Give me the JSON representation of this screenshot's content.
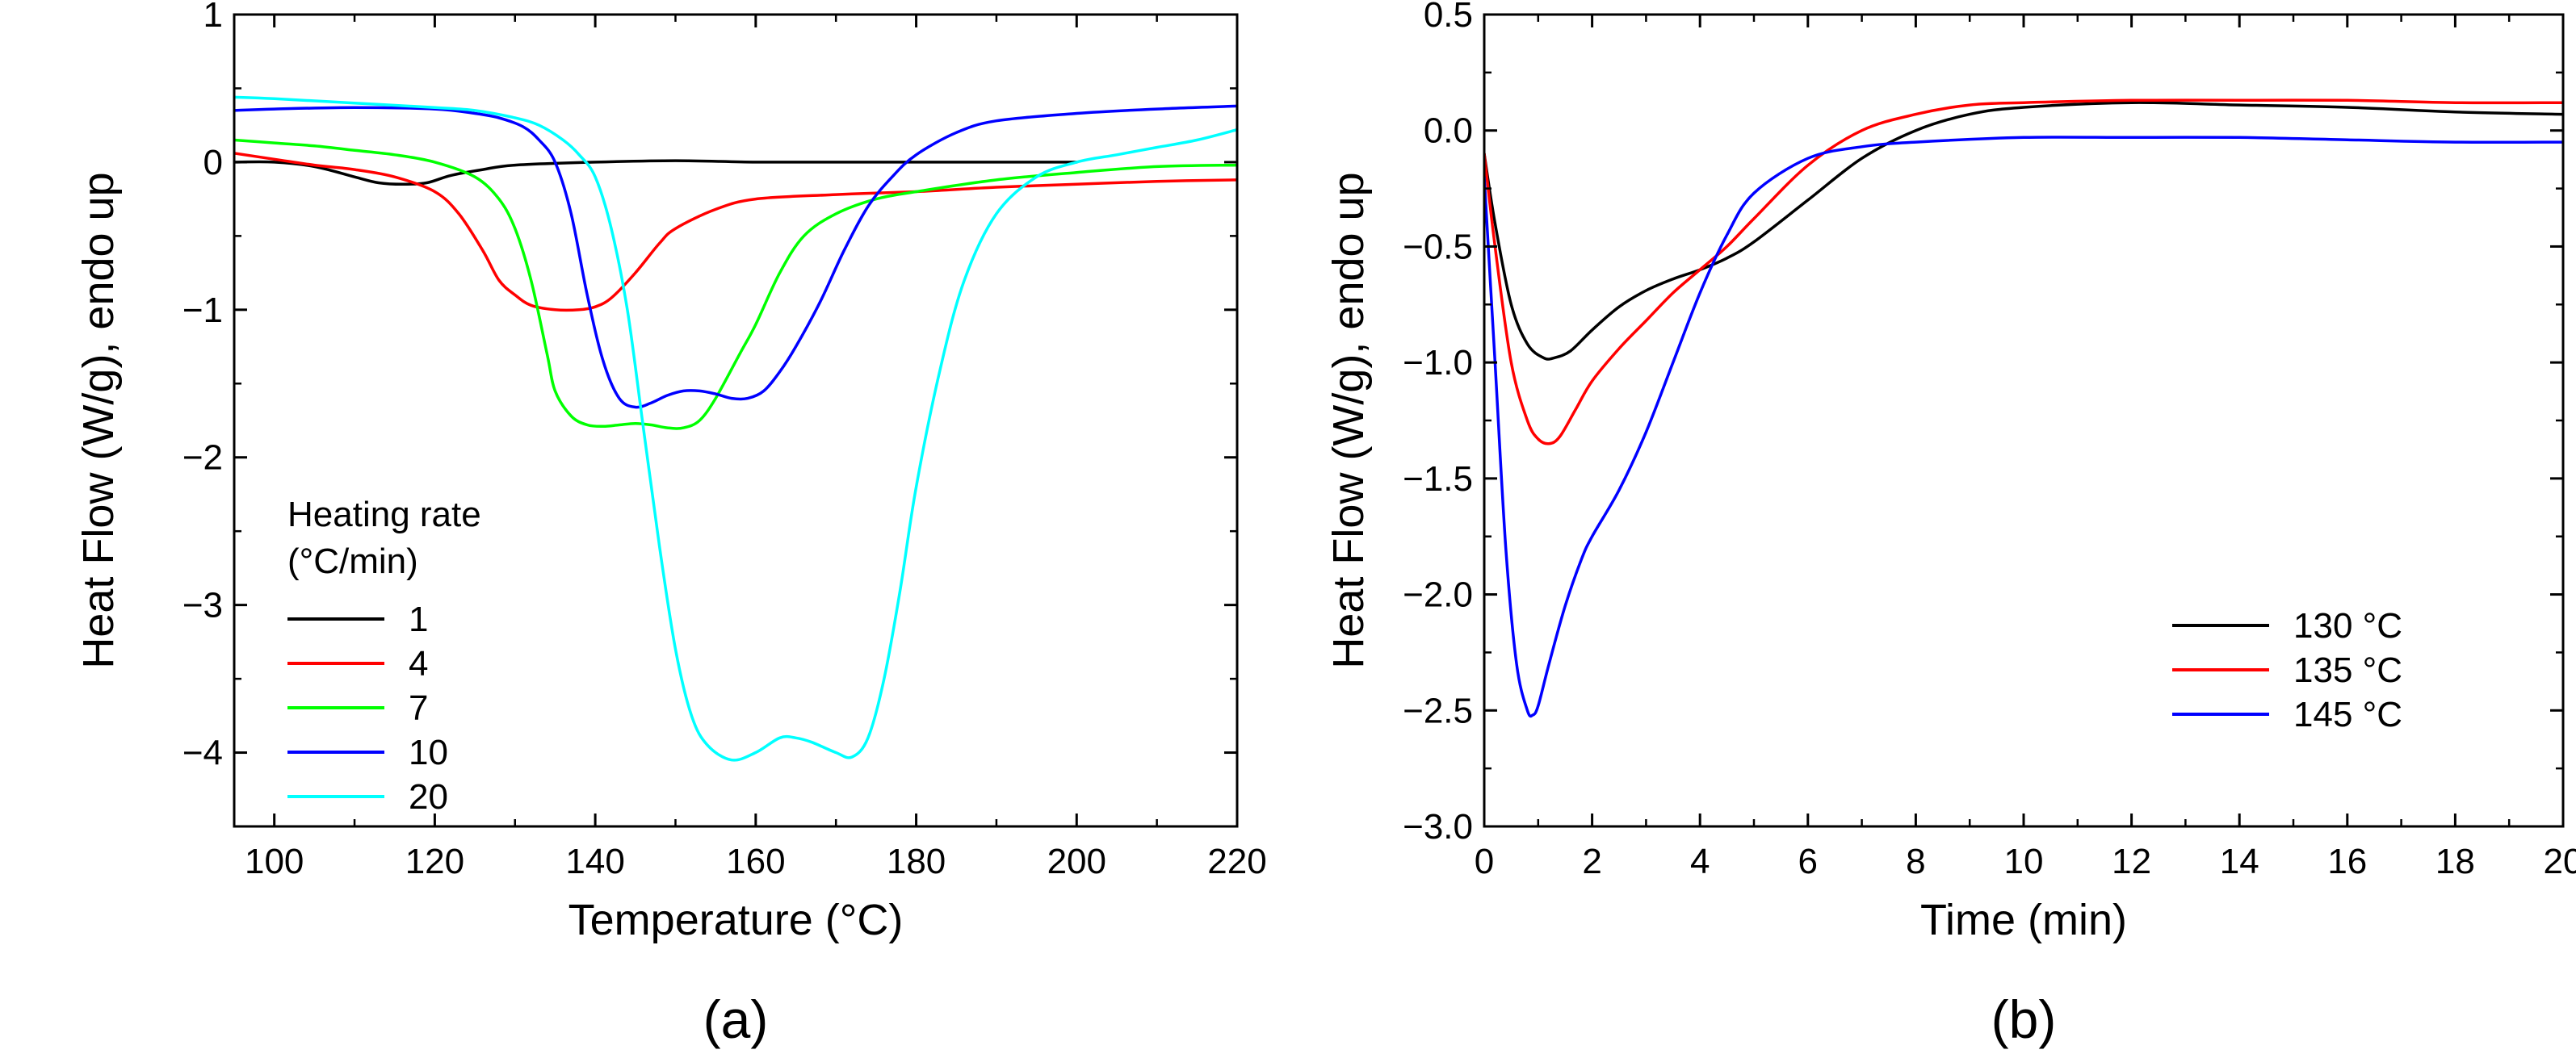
{
  "chart_data": [
    {
      "panel_label": "(a)",
      "type": "line",
      "xlabel": "Temperature (°C)",
      "ylabel": "Heat Flow (W/g), endo up",
      "xlim": [
        95,
        220
      ],
      "ylim": [
        -4.5,
        1
      ],
      "xticks": [
        100,
        120,
        140,
        160,
        180,
        200,
        220
      ],
      "xtick_labels": [
        "100",
        "120",
        "140",
        "160",
        "180",
        "200",
        "220"
      ],
      "yticks": [
        1,
        0,
        -1,
        -2,
        -3,
        -4
      ],
      "ytick_labels": [
        "1",
        "0",
        "−1",
        "−2",
        "−3",
        "−4"
      ],
      "grid": false,
      "legend_title_lines": [
        "Heating rate",
        "(°C/min)"
      ],
      "legend_position": "lower-left",
      "series": [
        {
          "name": "1",
          "color": "#000000",
          "x": [
            95,
            100,
            105,
            110,
            113,
            116,
            119,
            122,
            126,
            130,
            140,
            150,
            160,
            170,
            180,
            190,
            200
          ],
          "y": [
            0.0,
            0.0,
            -0.03,
            -0.1,
            -0.14,
            -0.15,
            -0.14,
            -0.09,
            -0.05,
            -0.02,
            0.0,
            0.01,
            0.0,
            0.0,
            0.0,
            0.0,
            0.0
          ]
        },
        {
          "name": "4",
          "color": "#ff0000",
          "x": [
            95,
            100,
            105,
            110,
            115,
            120,
            123,
            126,
            128,
            130,
            132,
            135,
            138,
            140,
            142,
            145,
            148,
            150,
            155,
            160,
            170,
            180,
            190,
            200,
            210,
            220
          ],
          "y": [
            0.06,
            0.02,
            -0.02,
            -0.05,
            -0.1,
            -0.2,
            -0.35,
            -0.6,
            -0.8,
            -0.9,
            -0.97,
            -1.0,
            -1.0,
            -0.98,
            -0.92,
            -0.75,
            -0.55,
            -0.45,
            -0.32,
            -0.25,
            -0.22,
            -0.2,
            -0.17,
            -0.15,
            -0.13,
            -0.12
          ]
        },
        {
          "name": "7",
          "color": "#00ff00",
          "x": [
            95,
            100,
            105,
            110,
            115,
            120,
            125,
            128,
            130,
            132,
            134,
            135,
            137,
            139,
            141,
            143,
            145,
            147,
            149,
            151,
            153,
            155,
            158,
            160,
            163,
            166,
            170,
            175,
            180,
            190,
            200,
            210,
            220
          ],
          "y": [
            0.15,
            0.13,
            0.11,
            0.08,
            0.05,
            0.0,
            -0.1,
            -0.25,
            -0.45,
            -0.8,
            -1.3,
            -1.55,
            -1.72,
            -1.78,
            -1.79,
            -1.78,
            -1.77,
            -1.78,
            -1.8,
            -1.8,
            -1.75,
            -1.6,
            -1.3,
            -1.1,
            -0.75,
            -0.5,
            -0.35,
            -0.25,
            -0.2,
            -0.12,
            -0.07,
            -0.03,
            -0.02
          ]
        },
        {
          "name": "10",
          "color": "#0000ff",
          "x": [
            95,
            100,
            110,
            120,
            125,
            128,
            131,
            133,
            135,
            137,
            139,
            141,
            143,
            145,
            147,
            149,
            151,
            153,
            155,
            157,
            159,
            161,
            163,
            165,
            168,
            171,
            174,
            177,
            180,
            185,
            190,
            200,
            210,
            220
          ],
          "y": [
            0.35,
            0.36,
            0.37,
            0.36,
            0.33,
            0.3,
            0.24,
            0.15,
            0.0,
            -0.35,
            -0.9,
            -1.35,
            -1.6,
            -1.66,
            -1.63,
            -1.58,
            -1.55,
            -1.55,
            -1.57,
            -1.6,
            -1.6,
            -1.55,
            -1.42,
            -1.25,
            -0.95,
            -0.6,
            -0.3,
            -0.1,
            0.05,
            0.2,
            0.28,
            0.33,
            0.36,
            0.38
          ]
        },
        {
          "name": "20",
          "color": "#00ffff",
          "x": [
            95,
            100,
            110,
            120,
            125,
            130,
            133,
            136,
            138,
            140,
            142,
            144,
            146,
            148,
            150,
            152,
            154,
            157,
            160,
            163,
            165,
            167,
            170,
            172,
            174,
            176,
            178,
            180,
            183,
            186,
            190,
            195,
            200,
            205,
            210,
            215,
            220
          ],
          "y": [
            0.44,
            0.43,
            0.4,
            0.37,
            0.35,
            0.3,
            0.25,
            0.15,
            0.05,
            -0.1,
            -0.45,
            -1.0,
            -1.8,
            -2.6,
            -3.3,
            -3.75,
            -3.95,
            -4.05,
            -4.0,
            -3.9,
            -3.9,
            -3.93,
            -4.0,
            -4.03,
            -3.9,
            -3.5,
            -2.9,
            -2.2,
            -1.4,
            -0.8,
            -0.35,
            -0.1,
            0.0,
            0.05,
            0.1,
            0.15,
            0.22
          ]
        }
      ]
    },
    {
      "panel_label": "(b)",
      "type": "line",
      "xlabel": "Time (min)",
      "ylabel": "Heat Flow (W/g), endo up",
      "xlim": [
        0,
        20
      ],
      "ylim": [
        -3.0,
        0.5
      ],
      "xticks": [
        0,
        2,
        4,
        6,
        8,
        10,
        12,
        14,
        16,
        18,
        20
      ],
      "xtick_labels": [
        "0",
        "2",
        "4",
        "6",
        "8",
        "10",
        "12",
        "14",
        "16",
        "18",
        "20"
      ],
      "yticks": [
        0.5,
        0.0,
        -0.5,
        -1.0,
        -1.5,
        -2.0,
        -2.5,
        -3.0
      ],
      "ytick_labels": [
        "0.5",
        "0.0",
        "−0.5",
        "−1.0",
        "−1.5",
        "−2.0",
        "−2.5",
        "−3.0"
      ],
      "grid": false,
      "legend_position": "lower-right",
      "series": [
        {
          "name": "130 °C",
          "color": "#000000",
          "x": [
            0,
            0.2,
            0.5,
            0.8,
            1.1,
            1.3,
            1.6,
            2.0,
            2.5,
            3.0,
            3.5,
            4.0,
            4.5,
            5.0,
            6.0,
            7.0,
            8.0,
            9.0,
            10.0,
            12.0,
            14.0,
            16.0,
            18.0,
            20.0
          ],
          "y": [
            -0.1,
            -0.4,
            -0.75,
            -0.92,
            -0.98,
            -0.98,
            -0.95,
            -0.86,
            -0.76,
            -0.69,
            -0.64,
            -0.6,
            -0.55,
            -0.48,
            -0.3,
            -0.12,
            0.0,
            0.07,
            0.1,
            0.12,
            0.11,
            0.1,
            0.08,
            0.07
          ]
        },
        {
          "name": "135 °C",
          "color": "#ff0000",
          "x": [
            0,
            0.2,
            0.5,
            0.8,
            1.0,
            1.2,
            1.4,
            1.7,
            2.0,
            2.5,
            3.0,
            3.5,
            4.0,
            4.5,
            5.0,
            6.0,
            7.0,
            8.0,
            9.0,
            10.0,
            12.0,
            14.0,
            16.0,
            18.0,
            20.0
          ],
          "y": [
            -0.1,
            -0.5,
            -1.0,
            -1.25,
            -1.33,
            -1.35,
            -1.32,
            -1.2,
            -1.08,
            -0.94,
            -0.82,
            -0.7,
            -0.6,
            -0.5,
            -0.38,
            -0.15,
            0.0,
            0.07,
            0.11,
            0.12,
            0.13,
            0.13,
            0.13,
            0.12,
            0.12
          ]
        },
        {
          "name": "145 °C",
          "color": "#0000ff",
          "x": [
            0,
            0.2,
            0.4,
            0.6,
            0.8,
            0.9,
            1.0,
            1.2,
            1.5,
            1.8,
            2.0,
            2.5,
            3.0,
            3.5,
            4.0,
            4.5,
            5.0,
            6.0,
            7.0,
            8.0,
            10.0,
            12.0,
            14.0,
            16.0,
            18.0,
            20.0
          ],
          "y": [
            -0.2,
            -1.0,
            -1.8,
            -2.3,
            -2.5,
            -2.52,
            -2.48,
            -2.3,
            -2.05,
            -1.85,
            -1.75,
            -1.55,
            -1.3,
            -1.0,
            -0.7,
            -0.45,
            -0.27,
            -0.12,
            -0.07,
            -0.05,
            -0.03,
            -0.03,
            -0.03,
            -0.04,
            -0.05,
            -0.05
          ]
        }
      ]
    }
  ]
}
